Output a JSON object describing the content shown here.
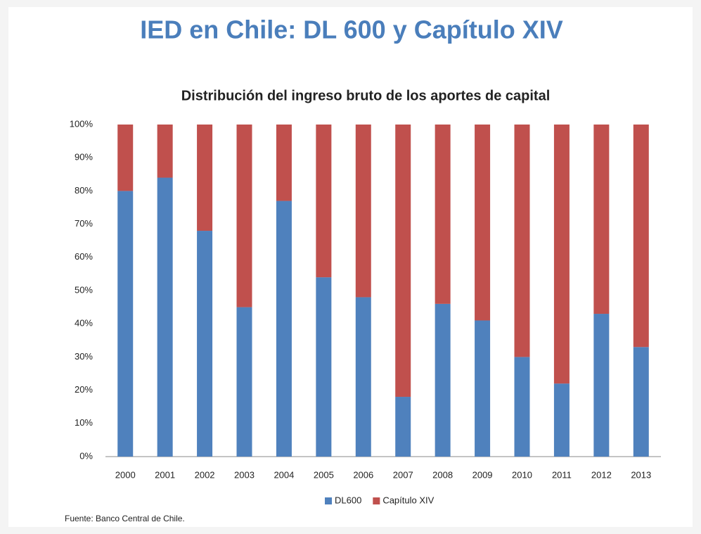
{
  "chart_data": {
    "type": "stacked_bar",
    "title": "IED en Chile: DL 600 y Capítulo XIV",
    "subtitle": "Distribución del ingreso bruto de los aportes de capital",
    "source": "Fuente: Banco Central de Chile.",
    "categories": [
      "2000",
      "2001",
      "2002",
      "2003",
      "2004",
      "2005",
      "2006",
      "2007",
      "2008",
      "2009",
      "2010",
      "2011",
      "2012",
      "2013"
    ],
    "series": [
      {
        "name": "DL600",
        "color": "#4f81bd",
        "values": [
          80,
          84,
          68,
          45,
          77,
          54,
          48,
          18,
          46,
          41,
          30,
          22,
          43,
          33
        ]
      },
      {
        "name": "Capítulo XIV",
        "color": "#c0504d",
        "values": [
          20,
          16,
          32,
          55,
          23,
          46,
          52,
          82,
          54,
          59,
          70,
          78,
          57,
          67
        ]
      }
    ],
    "ylim": [
      0,
      100
    ],
    "yticks": [
      {
        "value": 0,
        "label": "0%"
      },
      {
        "value": 10,
        "label": "10%"
      },
      {
        "value": 20,
        "label": "20%"
      },
      {
        "value": 30,
        "label": "30%"
      },
      {
        "value": 40,
        "label": "40%"
      },
      {
        "value": 50,
        "label": "50%"
      },
      {
        "value": 60,
        "label": "60%"
      },
      {
        "value": 70,
        "label": "70%"
      },
      {
        "value": 80,
        "label": "80%"
      },
      {
        "value": 90,
        "label": "90%"
      },
      {
        "value": 100,
        "label": "100%"
      }
    ],
    "legend": "bottom"
  }
}
